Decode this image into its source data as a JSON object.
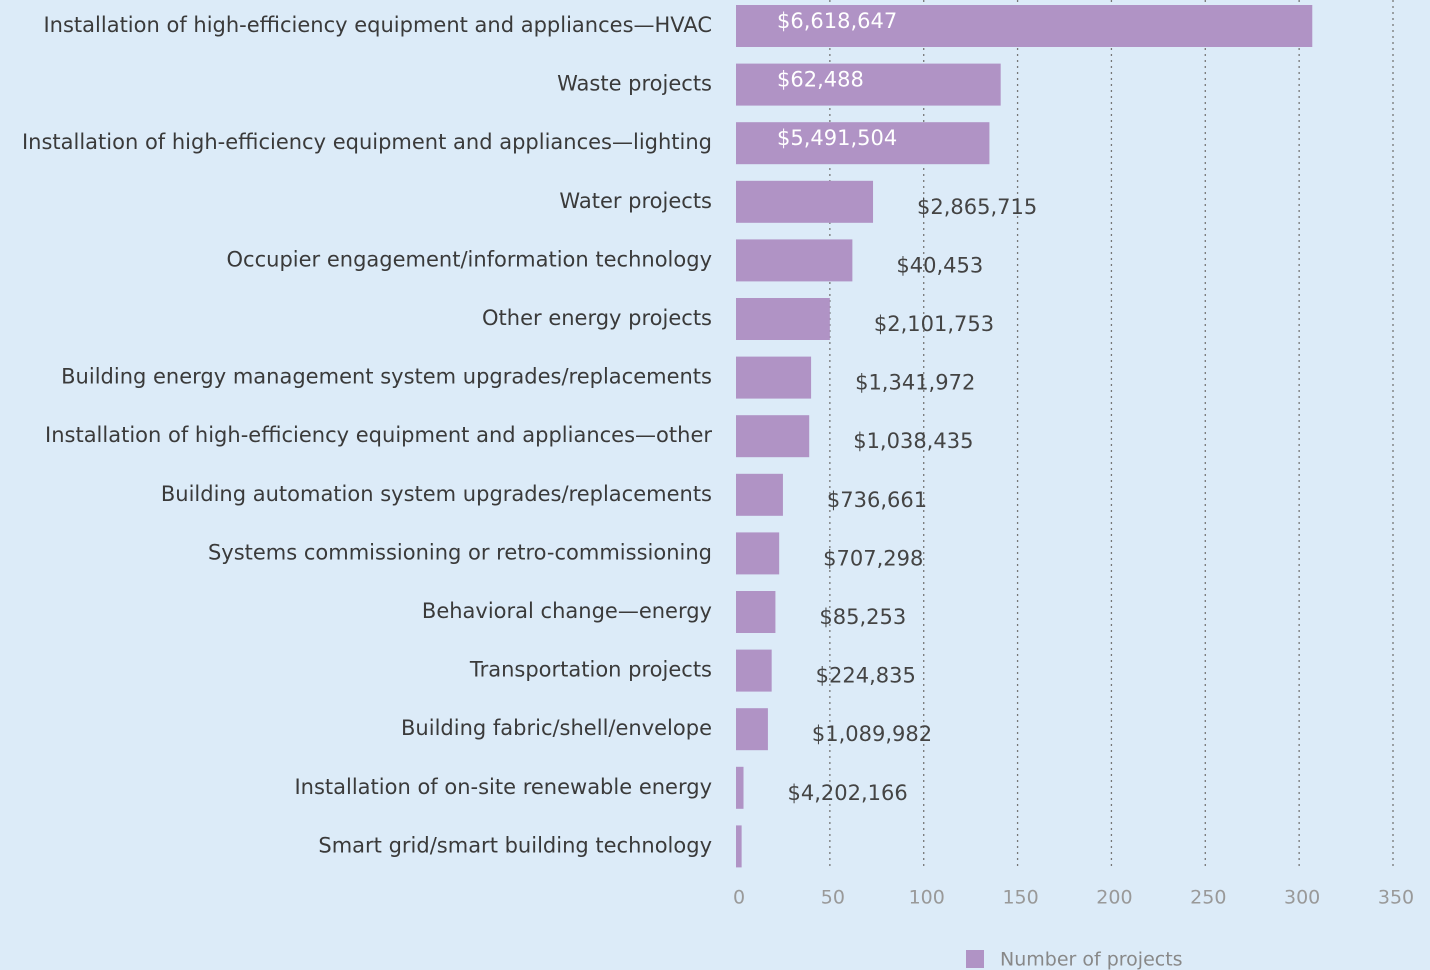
{
  "chart_data": {
    "type": "barh",
    "categories": [
      "Installation of high-efficiency equipment and appliances—HVAC",
      "Waste projects",
      "Installation of high-efficiency equipment and appliances—lighting",
      "Water projects",
      "Occupier engagement/information technology",
      "Other energy projects",
      "Building energy management system upgrades/replacements",
      "Installation of high-efficiency equipment and appliances—other",
      "Building automation system upgrades/replacements",
      "Systems commissioning or retro-commissioning",
      "Behavioral change—energy",
      "Transportation projects",
      "Building fabric/shell/envelope",
      "Installation of on-site renewable energy",
      "Smart grid/smart building technology"
    ],
    "series": [
      {
        "name": "Number of projects",
        "color": "#b093c5",
        "values": [
          307,
          141,
          135,
          73,
          62,
          50,
          40,
          39,
          25,
          23,
          21,
          19,
          17,
          4,
          3
        ]
      }
    ],
    "cost_labels": [
      "$6,618,647",
      "$62,488",
      "$5,491,504",
      "$2,865,715",
      "$40,453",
      "$2,101,753",
      "$1,341,972",
      "$1,038,435",
      "$736,661",
      "$707,298",
      "$85,253",
      "$224,835",
      "$1,089,982",
      "$4,202,166",
      null
    ],
    "xlim": [
      0,
      350
    ],
    "xticks": [
      0,
      50,
      100,
      150,
      200,
      250,
      300,
      350
    ],
    "grid": true,
    "legend": "bottom"
  }
}
